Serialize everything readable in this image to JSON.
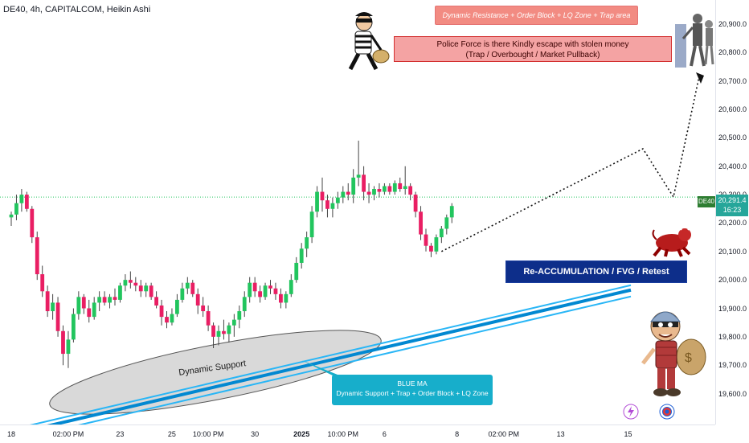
{
  "header": {
    "title": "DE40, 4h, CAPITALCOM, Heikin Ashi"
  },
  "annotations": {
    "top_box": "Dynamic Resistance + Order Block + LQ Zone + Trap area",
    "police_line1": "Police Force is there Kindly escape with stolen money",
    "police_line2": "(Trap / Overbought / Market Pullback)",
    "reaccum": "Re-ACCUMULATION / FVG / Retest",
    "blue_ma_title": "BLUE MA",
    "blue_ma_desc": "Dynamic Support + Trap + Order Block + LQ Zone",
    "dynamic_support": "Dynamic Support"
  },
  "price_tag": {
    "symbol": "DE40",
    "price": "20,291.4",
    "countdown": "16:23"
  },
  "colors": {
    "bull": "#26a69a",
    "bull_candle": "#22c55e",
    "bear": "#e91e63",
    "ma": "#29b6f6",
    "ma_dark": "#0288d1"
  },
  "icons": [
    "thief-icon",
    "police-icon",
    "bull-icon",
    "thief-with-sack-icon",
    "lightning-icon",
    "globe-icon"
  ],
  "chart_data": {
    "type": "candlestick",
    "ylim": [
      19550,
      20980
    ],
    "y_ticks": [
      "20,900.0",
      "20,800.0",
      "20,700.0",
      "20,600.0",
      "20,500.0",
      "20,400.0",
      "20,300.0",
      "20,200.0",
      "20,100.0",
      "20,000.0",
      "19,900.0",
      "19,800.0",
      "19,700.0",
      "19,600.0"
    ],
    "y_tick_values": [
      20900,
      20800,
      20700,
      20600,
      20500,
      20400,
      20300,
      20200,
      20100,
      20000,
      19900,
      19800,
      19700,
      19600
    ],
    "x_ticks": [
      {
        "label": "18",
        "i": 0
      },
      {
        "label": "02:00 PM",
        "i": 11
      },
      {
        "label": "23",
        "i": 21
      },
      {
        "label": "25",
        "i": 31
      },
      {
        "label": "10:00 PM",
        "i": 38
      },
      {
        "label": "30",
        "i": 47
      },
      {
        "label": "2025",
        "i": 56,
        "bold": true
      },
      {
        "label": "10:00 PM",
        "i": 64
      },
      {
        "label": "6",
        "i": 72
      },
      {
        "label": "8",
        "i": 86
      },
      {
        "label": "02:00 PM",
        "i": 95
      },
      {
        "label": "13",
        "i": 106
      },
      {
        "label": "15",
        "i": 119
      }
    ],
    "candles": [
      [
        20220,
        20240,
        20190,
        20230
      ],
      [
        20230,
        20300,
        20210,
        20270
      ],
      [
        20270,
        20320,
        20240,
        20300
      ],
      [
        20300,
        20310,
        20240,
        20250
      ],
      [
        20250,
        20260,
        20130,
        20150
      ],
      [
        20150,
        20170,
        20000,
        20020
      ],
      [
        20020,
        20050,
        19940,
        19960
      ],
      [
        19960,
        19980,
        19870,
        19890
      ],
      [
        19890,
        19950,
        19860,
        19920
      ],
      [
        19920,
        19940,
        19800,
        19820
      ],
      [
        19820,
        19840,
        19700,
        19740
      ],
      [
        19740,
        19820,
        19690,
        19790
      ],
      [
        19790,
        19900,
        19780,
        19880
      ],
      [
        19880,
        19960,
        19860,
        19940
      ],
      [
        19940,
        19950,
        19880,
        19900
      ],
      [
        19900,
        19930,
        19850,
        19870
      ],
      [
        19870,
        19940,
        19860,
        19920
      ],
      [
        19920,
        19960,
        19890,
        19940
      ],
      [
        19940,
        19960,
        19910,
        19920
      ],
      [
        19920,
        19950,
        19900,
        19940
      ],
      [
        19940,
        19970,
        19910,
        19930
      ],
      [
        19930,
        19990,
        19920,
        19980
      ],
      [
        19980,
        20020,
        19960,
        20000
      ],
      [
        20000,
        20030,
        19970,
        19990
      ],
      [
        19990,
        20010,
        19960,
        19980
      ],
      [
        19980,
        20000,
        19940,
        19960
      ],
      [
        19960,
        19990,
        19940,
        19980
      ],
      [
        19980,
        19990,
        19930,
        19940
      ],
      [
        19940,
        19960,
        19900,
        19910
      ],
      [
        19910,
        19930,
        19840,
        19870
      ],
      [
        19870,
        19890,
        19830,
        19850
      ],
      [
        19850,
        19900,
        19840,
        19880
      ],
      [
        19880,
        19950,
        19870,
        19930
      ],
      [
        19930,
        19990,
        19920,
        19970
      ],
      [
        19970,
        20010,
        19950,
        19990
      ],
      [
        19990,
        20000,
        19940,
        19950
      ],
      [
        19950,
        19970,
        19880,
        19910
      ],
      [
        19910,
        19940,
        19870,
        19890
      ],
      [
        19890,
        19910,
        19820,
        19840
      ],
      [
        19840,
        19850,
        19760,
        19800
      ],
      [
        19800,
        19840,
        19770,
        19820
      ],
      [
        19820,
        19860,
        19790,
        19810
      ],
      [
        19810,
        19850,
        19780,
        19840
      ],
      [
        19840,
        19880,
        19800,
        19860
      ],
      [
        19860,
        19910,
        19830,
        19890
      ],
      [
        19890,
        19960,
        19870,
        19940
      ],
      [
        19940,
        20010,
        19920,
        19990
      ],
      [
        19990,
        20010,
        19940,
        19960
      ],
      [
        19960,
        19980,
        19920,
        19940
      ],
      [
        19940,
        19990,
        19930,
        19980
      ],
      [
        19980,
        20000,
        19950,
        19970
      ],
      [
        19970,
        19990,
        19930,
        19950
      ],
      [
        19950,
        19970,
        19900,
        19920
      ],
      [
        19920,
        19960,
        19900,
        19950
      ],
      [
        19950,
        20020,
        19940,
        20000
      ],
      [
        20000,
        20080,
        19990,
        20060
      ],
      [
        20060,
        20130,
        20040,
        20110
      ],
      [
        20110,
        20170,
        20080,
        20150
      ],
      [
        20150,
        20260,
        20130,
        20240
      ],
      [
        20240,
        20330,
        20220,
        20310
      ],
      [
        20310,
        20360,
        20240,
        20280
      ],
      [
        20280,
        20300,
        20220,
        20250
      ],
      [
        20250,
        20290,
        20220,
        20270
      ],
      [
        20270,
        20310,
        20250,
        20290
      ],
      [
        20290,
        20330,
        20270,
        20310
      ],
      [
        20310,
        20340,
        20280,
        20300
      ],
      [
        20300,
        20390,
        20270,
        20360
      ],
      [
        20360,
        20490,
        20330,
        20370
      ],
      [
        20370,
        20400,
        20280,
        20310
      ],
      [
        20310,
        20340,
        20270,
        20300
      ],
      [
        20300,
        20330,
        20280,
        20320
      ],
      [
        20320,
        20340,
        20290,
        20310
      ],
      [
        20310,
        20340,
        20300,
        20330
      ],
      [
        20330,
        20340,
        20300,
        20310
      ],
      [
        20310,
        20350,
        20300,
        20340
      ],
      [
        20340,
        20360,
        20310,
        20320
      ],
      [
        20320,
        20400,
        20300,
        20330
      ],
      [
        20330,
        20340,
        20280,
        20300
      ],
      [
        20300,
        20310,
        20220,
        20240
      ],
      [
        20240,
        20260,
        20140,
        20160
      ],
      [
        20160,
        20180,
        20100,
        20120
      ],
      [
        20120,
        20130,
        20080,
        20100
      ],
      [
        20100,
        20160,
        20090,
        20150
      ],
      [
        20150,
        20190,
        20130,
        20180
      ],
      [
        20180,
        20230,
        20160,
        20220
      ],
      [
        20220,
        20270,
        20200,
        20260
      ]
    ],
    "ma_line": {
      "x1_i": 0,
      "y1": 19580,
      "x2_i": 128,
      "y2": 19970
    },
    "projection": [
      [
        20260,
        87
      ],
      [
        20470,
        90
      ],
      [
        20310,
        96
      ],
      [
        20730,
        102
      ]
    ]
  }
}
